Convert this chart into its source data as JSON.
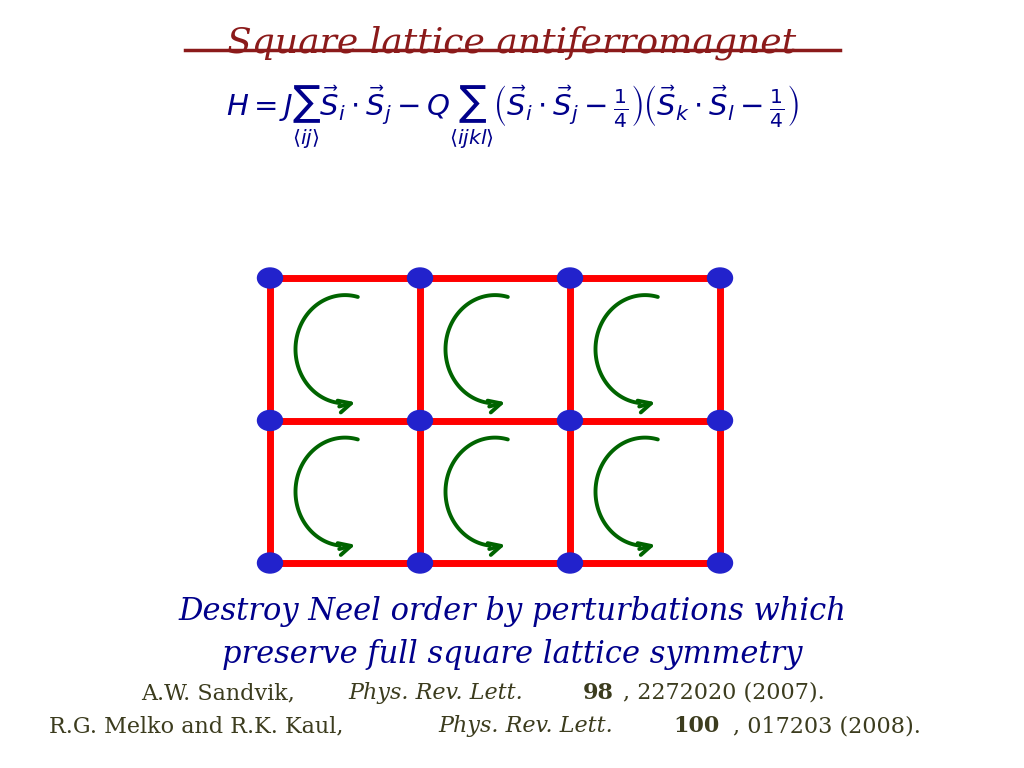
{
  "title": "Square lattice antiferromagnet",
  "title_color": "#8B1A1A",
  "title_fontsize": 26,
  "background_color": "#ffffff",
  "equation": "H = J \\sum_{\\langle ij \\rangle} \\vec{S}_i \\cdot \\vec{S}_j - Q \\sum_{\\langle ijkl \\rangle} \\left( \\vec{S}_i \\cdot \\vec{S}_j - \\frac{1}{4} \\right) \\left( \\vec{S}_k \\cdot \\vec{S}_l - \\frac{1}{4} \\right)",
  "eq_color": "#00008B",
  "lattice_rows": 3,
  "lattice_cols": 4,
  "node_color": "#2222CC",
  "edge_color": "#FF0000",
  "edge_linewidth": 5,
  "arrow_color": "#006400",
  "subtitle": "Destroy Neel order by perturbations which\npreserve full square lattice symmetry",
  "subtitle_color": "#00008B",
  "subtitle_fontsize": 22,
  "ref1": "A.W. Sandvik, ",
  "ref1_italic": "Phys. Rev. Lett.",
  "ref1_bold": "98",
  "ref1_rest": ", 2272020 (2007).",
  "ref2": "R.G. Melko and R.K. Kaul, ",
  "ref2_italic": "Phys. Rev. Lett.",
  "ref2_bold": "100",
  "ref2_rest": ", 017203 (2008).",
  "ref_color": "#3C3C1E",
  "ref_fontsize": 16
}
